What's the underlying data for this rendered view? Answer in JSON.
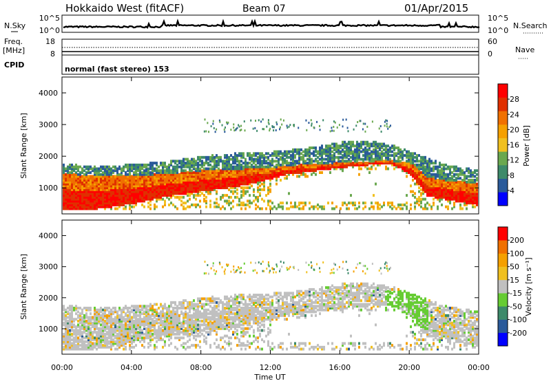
{
  "header": {
    "station": "Hokkaido West (fitACF)",
    "beam": "Beam 07",
    "date": "01/Apr/2015"
  },
  "noise_panel": {
    "left_label": "N.Sky",
    "right_label": "N.Search",
    "left_ticks": [
      "10^5",
      "10^0"
    ],
    "right_ticks": [
      "10^5",
      "10^0"
    ]
  },
  "freq_panel": {
    "left_label_line1": "Freq.",
    "left_label_line2": "[MHz]",
    "right_label": "Nave",
    "left_ticks": [
      "18",
      "8"
    ],
    "right_ticks": [
      "60",
      "0"
    ],
    "cpid_label": "CPID",
    "cpid_text": "normal (fast stereo) 153"
  },
  "chart_data": [
    {
      "type": "heatmap",
      "title": "",
      "ylabel": "Slant Range [km]",
      "xlabel": "",
      "xlim": [
        "00:00",
        "00:00"
      ],
      "ylim": [
        180,
        4500
      ],
      "y_ticks": [
        1000,
        2000,
        3000,
        4000
      ],
      "x_ticks": [
        "00:00",
        "04:00",
        "08:00",
        "12:00",
        "16:00",
        "20:00",
        "00:00"
      ],
      "colorbar": {
        "label": "Power [dB]",
        "range": [
          0,
          32
        ],
        "tick_values": [
          4,
          8,
          12,
          16,
          20,
          24,
          28
        ],
        "tick_labels": [
          "4",
          "8",
          "12",
          "16",
          "20",
          "24",
          "28"
        ],
        "colors": [
          "#0000ff",
          "#2a5a9a",
          "#3d8a6a",
          "#6aa84f",
          "#f0c020",
          "#f5a000",
          "#f07000",
          "#e03000",
          "#ff0000"
        ]
      },
      "bands_hours_km": {
        "hours": [
          0,
          2,
          4,
          6,
          8,
          10,
          12,
          13,
          14,
          16,
          18,
          19,
          20,
          21,
          22,
          23,
          24
        ],
        "echo_upper_edge_km": [
          1700,
          1650,
          1700,
          1800,
          1950,
          2050,
          2100,
          2150,
          2200,
          2400,
          2450,
          2300,
          2100,
          1900,
          1700,
          1600,
          1500
        ],
        "strong_echo_lower_km": [
          300,
          300,
          450,
          700,
          850,
          1000,
          1250,
          1400,
          1450,
          1600,
          1700,
          1700,
          1400,
          700,
          600,
          500,
          400
        ],
        "strong_echo_upper_km": [
          1400,
          1350,
          1350,
          1400,
          1500,
          1550,
          1600,
          1650,
          1700,
          1750,
          1800,
          1800,
          1750,
          1300,
          1200,
          1150,
          1100
        ]
      }
    },
    {
      "type": "heatmap",
      "title": "",
      "ylabel": "Slant Range [km]",
      "xlabel": "Time UT",
      "xlim": [
        "00:00",
        "00:00"
      ],
      "ylim": [
        180,
        4500
      ],
      "y_ticks": [
        1000,
        2000,
        3000,
        4000
      ],
      "x_ticks": [
        "00:00",
        "04:00",
        "08:00",
        "12:00",
        "16:00",
        "20:00",
        "00:00"
      ],
      "colorbar": {
        "label": "Velocity [m s⁻¹]",
        "range": [
          -250,
          250
        ],
        "tick_values": [
          200,
          100,
          50,
          15,
          -15,
          -50,
          -100,
          -200
        ],
        "tick_labels": [
          "200",
          "100",
          "50",
          "15",
          "-15",
          "-50",
          "-100",
          "-200"
        ],
        "colors": [
          "#0000ff",
          "#2a5a9a",
          "#3d8a6a",
          "#66cc33",
          "#c0c0c0",
          "#f0c020",
          "#f5a000",
          "#f07000",
          "#ff0000"
        ]
      }
    }
  ]
}
